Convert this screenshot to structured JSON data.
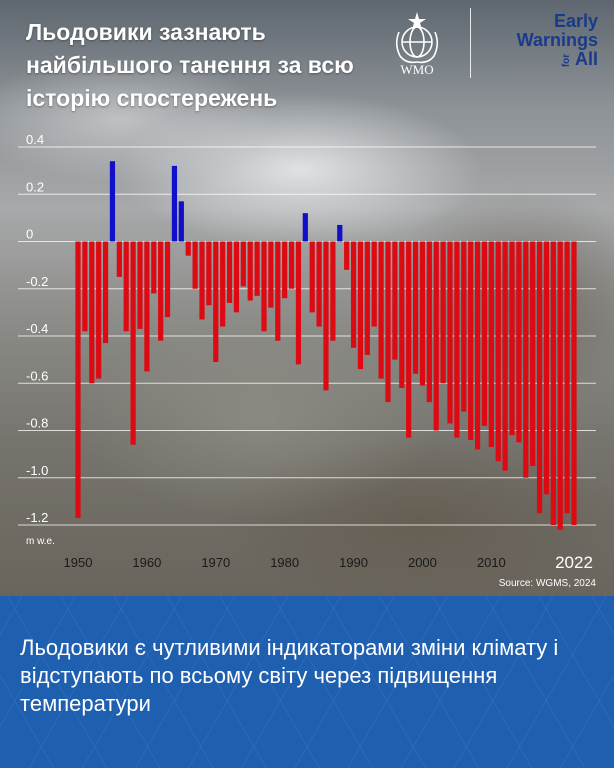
{
  "header": {
    "title": "Льодовики зазнають найбільшого танення за всю історію спостережень",
    "wmo_label": "WMO",
    "ew_line1": "Early",
    "ew_line2": "Warnings",
    "ew_for": "for",
    "ew_line3": "All"
  },
  "source": "Source: WGMS, 2024",
  "caption": "Льодовики є чутливими індикаторами зміни клімату і відступають по всьому світу через підвищення температури",
  "colors": {
    "positive": "#1010cc",
    "negative": "#dd0a14",
    "banner": "#1f5fb0"
  },
  "chart_data": {
    "type": "bar",
    "title": "Льодовики зазнають найбільшого танення за всю історію спостережень",
    "ylabel": "m w.e.",
    "ylim": [
      -1.25,
      0.4
    ],
    "yticks": [
      0.4,
      0.2,
      0,
      -0.2,
      -0.4,
      -0.6,
      -0.8,
      -1.0,
      -1.2
    ],
    "ytick_labels": [
      "0.4",
      "0.2",
      "0",
      "-0.2",
      "-0.4",
      "-0.6",
      "-0.8",
      "-1.0",
      "-1.2"
    ],
    "xticks": [
      1950,
      1960,
      1970,
      1980,
      1990,
      2000,
      2010,
      2022
    ],
    "xtick_labels": [
      "1950",
      "1960",
      "1970",
      "1980",
      "1990",
      "2000",
      "2010",
      "2022"
    ],
    "grid": true,
    "x": [
      1950,
      1951,
      1952,
      1953,
      1954,
      1955,
      1956,
      1957,
      1958,
      1959,
      1960,
      1961,
      1962,
      1963,
      1964,
      1965,
      1966,
      1967,
      1968,
      1969,
      1970,
      1971,
      1972,
      1973,
      1974,
      1975,
      1976,
      1977,
      1978,
      1979,
      1980,
      1981,
      1982,
      1983,
      1984,
      1985,
      1986,
      1987,
      1988,
      1989,
      1990,
      1991,
      1992,
      1993,
      1994,
      1995,
      1996,
      1997,
      1998,
      1999,
      2000,
      2001,
      2002,
      2003,
      2004,
      2005,
      2006,
      2007,
      2008,
      2009,
      2010,
      2011,
      2012,
      2013,
      2014,
      2015,
      2016,
      2017,
      2018,
      2019,
      2020,
      2021,
      2022
    ],
    "values": [
      -1.17,
      -0.38,
      -0.6,
      -0.58,
      -0.43,
      0.34,
      -0.15,
      -0.38,
      -0.86,
      -0.37,
      -0.55,
      -0.22,
      -0.42,
      -0.32,
      0.32,
      0.17,
      -0.06,
      -0.2,
      -0.33,
      -0.27,
      -0.51,
      -0.36,
      -0.26,
      -0.3,
      -0.19,
      -0.25,
      -0.23,
      -0.38,
      -0.28,
      -0.42,
      -0.24,
      -0.2,
      -0.52,
      0.12,
      -0.3,
      -0.36,
      -0.63,
      -0.42,
      0.07,
      -0.12,
      -0.45,
      -0.54,
      -0.48,
      -0.36,
      -0.58,
      -0.68,
      -0.5,
      -0.62,
      -0.83,
      -0.56,
      -0.61,
      -0.68,
      -0.8,
      -0.6,
      -0.77,
      -0.83,
      -0.72,
      -0.84,
      -0.88,
      -0.78,
      -0.87,
      -0.93,
      -0.97,
      -0.82,
      -0.85,
      -1.0,
      -0.95,
      -1.15,
      -1.07,
      -1.2,
      -1.22,
      -1.15,
      -1.2
    ]
  }
}
